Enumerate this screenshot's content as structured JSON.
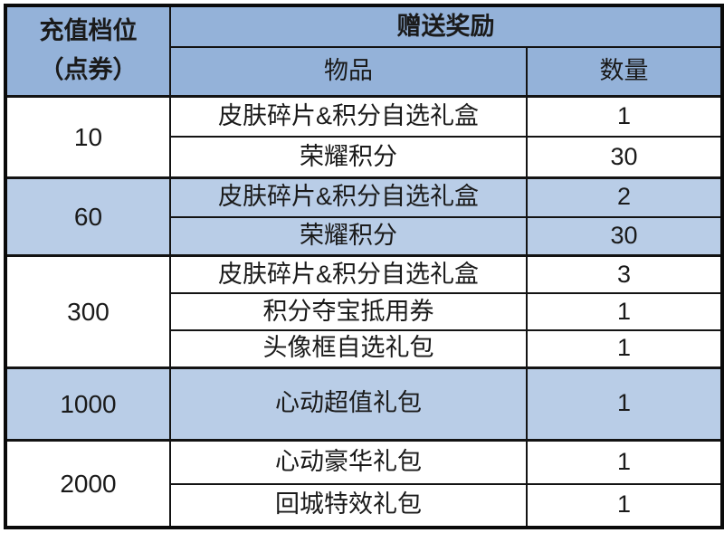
{
  "chart_data": {
    "type": "table",
    "title": "",
    "columns": [
      "充值档位（点券）",
      "物品",
      "数量"
    ],
    "merged_header": "赠送奖励",
    "rows": [
      [
        "10",
        "皮肤碎片&积分自选礼盒",
        "1"
      ],
      [
        "10",
        "荣耀积分",
        "30"
      ],
      [
        "60",
        "皮肤碎片&积分自选礼盒",
        "2"
      ],
      [
        "60",
        "荣耀积分",
        "30"
      ],
      [
        "300",
        "皮肤碎片&积分自选礼盒",
        "3"
      ],
      [
        "300",
        "积分夺宝抵用券",
        "1"
      ],
      [
        "300",
        "头像框自选礼包",
        "1"
      ],
      [
        "1000",
        "心动超值礼包",
        "1"
      ],
      [
        "2000",
        "心动豪华礼包",
        "1"
      ],
      [
        "2000",
        "回城特效礼包",
        "1"
      ]
    ],
    "layout": {
      "grid": "on",
      "highlighted_tiers": [
        "60",
        "1000"
      ],
      "header_background": "#94b2d9",
      "highlight_background": "#b9cde7"
    }
  },
  "table": {
    "header": {
      "tier_line1": "充值档位",
      "tier_line2": "（点券）",
      "rewards": "赠送奖励",
      "item": "物品",
      "qty": "数量"
    },
    "groups": [
      {
        "tier": "10",
        "items": [
          {
            "name": "皮肤碎片&积分自选礼盒",
            "qty": "1"
          },
          {
            "name": "荣耀积分",
            "qty": "30"
          }
        ]
      },
      {
        "tier": "60",
        "items": [
          {
            "name": "皮肤碎片&积分自选礼盒",
            "qty": "2"
          },
          {
            "name": "荣耀积分",
            "qty": "30"
          }
        ]
      },
      {
        "tier": "300",
        "items": [
          {
            "name": "皮肤碎片&积分自选礼盒",
            "qty": "3"
          },
          {
            "name": "积分夺宝抵用券",
            "qty": "1"
          },
          {
            "name": "头像框自选礼包",
            "qty": "1"
          }
        ]
      },
      {
        "tier": "1000",
        "items": [
          {
            "name": "心动超值礼包",
            "qty": "1"
          }
        ]
      },
      {
        "tier": "2000",
        "items": [
          {
            "name": "心动豪华礼包",
            "qty": "1"
          },
          {
            "name": "回城特效礼包",
            "qty": "1"
          }
        ]
      }
    ],
    "colors": {
      "header_blue": "#94b2d9",
      "band_blue": "#b9cde7",
      "border": "#131313",
      "text": "#1a1a1a"
    }
  }
}
